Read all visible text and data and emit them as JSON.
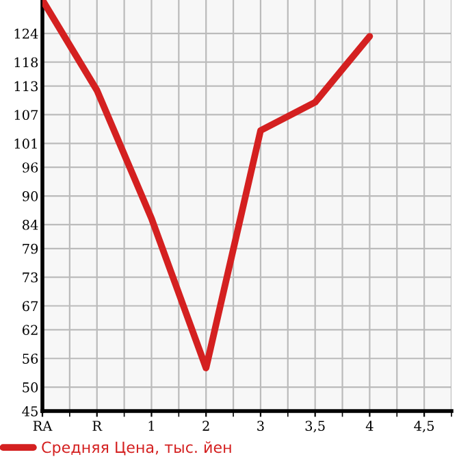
{
  "chart_data": {
    "type": "line",
    "categories": [
      "RA",
      "R",
      "1",
      "2",
      "3",
      "3,5",
      "4",
      "4,5"
    ],
    "series": [
      {
        "name": "Средняя Цена, тыс. йен",
        "color": "#d42020",
        "values": [
          131,
          112.1,
          85.3,
          54.0,
          103.7,
          109.6,
          123.4,
          null
        ]
      }
    ],
    "ylim": [
      45,
      131
    ],
    "yticks": [
      45,
      50,
      56,
      62,
      67,
      73,
      79,
      84,
      90,
      96,
      101,
      107,
      113,
      118,
      124
    ],
    "grid": true,
    "legend": "bottom",
    "marker": "none",
    "line_style": "solid"
  }
}
